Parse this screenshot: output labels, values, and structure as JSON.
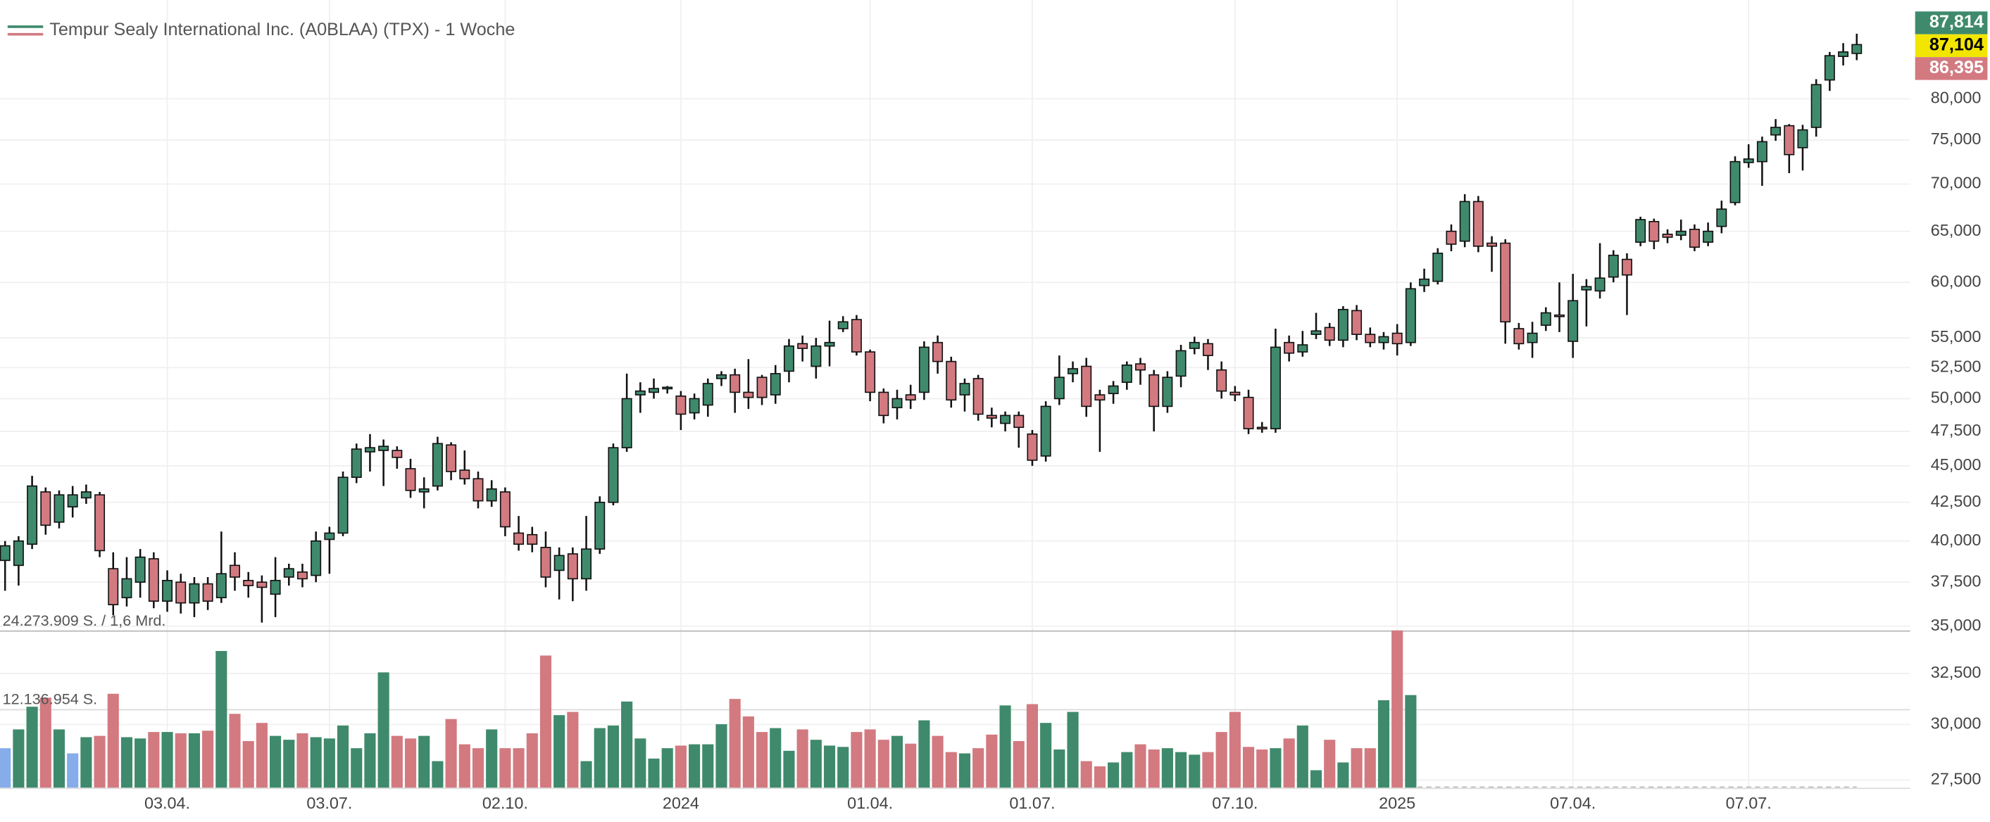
{
  "chart_data": {
    "type": "candlestick",
    "title": "Tempur Sealy International Inc. (A0BLAA) (TPX) - 1 Woche",
    "log_scale": true,
    "grid": true,
    "up_color": "#3f8a6c",
    "down_color": "#d27a80",
    "neutral_color": "#86acea",
    "categories": [
      null,
      null,
      null,
      null,
      null,
      null,
      null,
      null,
      null,
      null,
      null,
      null,
      "03.04.",
      null,
      null,
      null,
      null,
      null,
      null,
      null,
      null,
      null,
      null,
      null,
      "03.07.",
      null,
      null,
      null,
      null,
      null,
      null,
      null,
      null,
      null,
      null,
      null,
      null,
      "02.10.",
      null,
      null,
      null,
      null,
      null,
      null,
      null,
      null,
      null,
      null,
      null,
      null,
      "2024",
      null,
      null,
      null,
      null,
      null,
      null,
      null,
      null,
      null,
      null,
      null,
      null,
      null,
      "01.04.",
      null,
      null,
      null,
      null,
      null,
      null,
      null,
      null,
      null,
      null,
      null,
      "01.07.",
      null,
      null,
      null,
      null,
      null,
      null,
      null,
      null,
      null,
      null,
      null,
      null,
      null,
      null,
      "07.10.",
      null,
      null,
      null,
      null,
      null,
      null,
      null,
      null,
      null,
      null,
      null,
      "2025",
      null,
      null,
      null,
      null,
      null,
      null,
      null,
      null,
      null,
      null,
      null,
      null,
      "07.04.",
      null,
      null,
      null,
      null,
      null,
      null,
      null,
      null,
      null,
      null,
      null,
      null,
      "07.07.",
      null,
      null,
      null,
      null,
      null,
      null,
      null,
      null
    ],
    "ohlc": [
      [
        38.8,
        40,
        37,
        39.7
      ],
      [
        38.5,
        40.3,
        37.3,
        40
      ],
      [
        39.8,
        44.3,
        39.5,
        43.6
      ],
      [
        43.2,
        43.5,
        40.4,
        41
      ],
      [
        41.2,
        43.3,
        40.8,
        43
      ],
      [
        42.2,
        43.6,
        41.5,
        43
      ],
      [
        42.8,
        43.7,
        42.4,
        43.2
      ],
      [
        43,
        43.2,
        39,
        39.4
      ],
      [
        38.3,
        39.3,
        35.6,
        36.2
      ],
      [
        36.6,
        39,
        36.1,
        37.7
      ],
      [
        37.5,
        39.5,
        36.6,
        39
      ],
      [
        38.9,
        39.3,
        36,
        36.4
      ],
      [
        36.4,
        38.2,
        35.8,
        37.6
      ],
      [
        37.5,
        38,
        35.7,
        36.3
      ],
      [
        36.3,
        37.8,
        35.5,
        37.4
      ],
      [
        37.4,
        37.8,
        35.9,
        36.4
      ],
      [
        36.6,
        40.6,
        36.3,
        38
      ],
      [
        38.5,
        39.3,
        37,
        37.8
      ],
      [
        37.6,
        38.1,
        36.6,
        37.3
      ],
      [
        37.5,
        37.9,
        35.2,
        37.2
      ],
      [
        36.8,
        39,
        35.5,
        37.6
      ],
      [
        37.8,
        38.6,
        37.3,
        38.3
      ],
      [
        38.1,
        38.6,
        37.2,
        37.7
      ],
      [
        37.9,
        40.6,
        37.5,
        40
      ],
      [
        40.1,
        40.9,
        38,
        40.5
      ],
      [
        40.5,
        44.6,
        40.3,
        44.2
      ],
      [
        44.2,
        46.6,
        43.8,
        46.2
      ],
      [
        46,
        47.3,
        44.6,
        46.3
      ],
      [
        46.1,
        46.9,
        43.6,
        46.4
      ],
      [
        46.1,
        46.4,
        44.8,
        45.6
      ],
      [
        44.8,
        45.5,
        42.8,
        43.3
      ],
      [
        43.2,
        44.2,
        42.1,
        43.4
      ],
      [
        43.6,
        47.1,
        43.3,
        46.6
      ],
      [
        46.5,
        46.7,
        44,
        44.6
      ],
      [
        44.7,
        46.1,
        43.7,
        44.1
      ],
      [
        44.1,
        44.6,
        42.1,
        42.6
      ],
      [
        42.6,
        44,
        42.2,
        43.4
      ],
      [
        43.2,
        43.5,
        40.3,
        40.9
      ],
      [
        40.5,
        41.6,
        39.4,
        39.8
      ],
      [
        40.4,
        40.9,
        39.3,
        39.8
      ],
      [
        39.6,
        40.6,
        37.2,
        37.8
      ],
      [
        38.2,
        39.6,
        36.5,
        39.1
      ],
      [
        39.2,
        39.6,
        36.4,
        37.7
      ],
      [
        37.7,
        41.6,
        37,
        39.5
      ],
      [
        39.5,
        42.9,
        39.2,
        42.5
      ],
      [
        42.5,
        46.6,
        42.3,
        46.3
      ],
      [
        46.3,
        52,
        46,
        50
      ],
      [
        50.3,
        51.3,
        48.9,
        50.6
      ],
      [
        50.5,
        51.6,
        50,
        50.8
      ],
      [
        50.8,
        51,
        50.4,
        50.9
      ],
      [
        50.2,
        50.6,
        47.6,
        48.8
      ],
      [
        48.9,
        50.4,
        48.4,
        50
      ],
      [
        49.5,
        51.6,
        48.6,
        51.2
      ],
      [
        51.6,
        52.2,
        51,
        51.9
      ],
      [
        51.9,
        52.4,
        48.9,
        50.5
      ],
      [
        50.5,
        53.2,
        49.2,
        50.1
      ],
      [
        51.7,
        51.9,
        49.5,
        50.1
      ],
      [
        50.3,
        52.7,
        49.6,
        52
      ],
      [
        52.2,
        54.9,
        51.3,
        54.3
      ],
      [
        54.5,
        55.2,
        53,
        54.1
      ],
      [
        52.6,
        55,
        51.6,
        54.3
      ],
      [
        54.3,
        56.5,
        52.6,
        54.6
      ],
      [
        55.8,
        56.9,
        55.5,
        56.4
      ],
      [
        56.6,
        57,
        53.5,
        53.8
      ],
      [
        53.8,
        54,
        49.8,
        50.5
      ],
      [
        50.5,
        50.8,
        48.1,
        48.7
      ],
      [
        49.3,
        50.7,
        48.4,
        50
      ],
      [
        50.3,
        51.1,
        49.2,
        49.9
      ],
      [
        50.5,
        54.7,
        49.9,
        54.2
      ],
      [
        54.6,
        55.2,
        52,
        53
      ],
      [
        53,
        53.4,
        49.3,
        49.9
      ],
      [
        50.3,
        51.6,
        49,
        51.2
      ],
      [
        51.6,
        51.9,
        48.3,
        48.8
      ],
      [
        48.7,
        49.3,
        47.8,
        48.5
      ],
      [
        48.1,
        49,
        47.5,
        48.7
      ],
      [
        48.7,
        49,
        46.3,
        47.8
      ],
      [
        47.3,
        47.6,
        45,
        45.4
      ],
      [
        45.7,
        49.8,
        45.3,
        49.4
      ],
      [
        50,
        53.5,
        49.5,
        51.7
      ],
      [
        52,
        53,
        51.3,
        52.4
      ],
      [
        52.6,
        53.3,
        48.6,
        49.4
      ],
      [
        50.3,
        50.7,
        46,
        49.9
      ],
      [
        50.4,
        51.4,
        49.6,
        51
      ],
      [
        51.3,
        53,
        50.7,
        52.7
      ],
      [
        52.8,
        53.3,
        51.1,
        52.3
      ],
      [
        51.9,
        52.3,
        47.5,
        49.4
      ],
      [
        49.4,
        52.2,
        48.9,
        51.7
      ],
      [
        51.8,
        54.4,
        50.9,
        53.9
      ],
      [
        54.1,
        55.1,
        53.6,
        54.6
      ],
      [
        54.5,
        54.9,
        52.3,
        53.5
      ],
      [
        52.3,
        53,
        50,
        50.6
      ],
      [
        50.5,
        51,
        49.8,
        50.3
      ],
      [
        50.1,
        50.7,
        47.3,
        47.7
      ],
      [
        47.8,
        48.2,
        47.4,
        47.7
      ],
      [
        47.7,
        55.8,
        47.4,
        54.2
      ],
      [
        54.6,
        55.2,
        53,
        53.7
      ],
      [
        53.8,
        55.6,
        53.4,
        54.4
      ],
      [
        55.3,
        57.2,
        54.9,
        55.6
      ],
      [
        55.9,
        56.3,
        54.3,
        54.8
      ],
      [
        54.8,
        57.8,
        54.2,
        57.5
      ],
      [
        57.4,
        57.9,
        54.8,
        55.3
      ],
      [
        55.3,
        55.9,
        54.2,
        54.6
      ],
      [
        54.6,
        55.5,
        54,
        55.1
      ],
      [
        55.4,
        56.2,
        53.5,
        54.5
      ],
      [
        54.6,
        60,
        54.3,
        59.4
      ],
      [
        59.7,
        61.3,
        59.1,
        60.3
      ],
      [
        60.1,
        63.3,
        59.8,
        62.8
      ],
      [
        65,
        65.7,
        63,
        63.7
      ],
      [
        64,
        68.9,
        63.4,
        68.1
      ],
      [
        68.1,
        68.7,
        62.9,
        63.5
      ],
      [
        63.8,
        64.5,
        61,
        63.5
      ],
      [
        63.8,
        64.2,
        54.5,
        56.4
      ],
      [
        55.8,
        56.3,
        54,
        54.5
      ],
      [
        54.6,
        56.4,
        53.3,
        55.4
      ],
      [
        56.1,
        57.7,
        55.6,
        57.2
      ],
      [
        57,
        60,
        55.5,
        56.9
      ],
      [
        54.7,
        60.8,
        53.3,
        58.3
      ],
      [
        59.3,
        60.3,
        56,
        59.6
      ],
      [
        59.2,
        63.8,
        58.5,
        60.4
      ],
      [
        60.5,
        63.1,
        60,
        62.6
      ],
      [
        62.2,
        62.8,
        57,
        60.7
      ],
      [
        63.9,
        66.5,
        63.5,
        66.2
      ],
      [
        66,
        66.3,
        63.2,
        64
      ],
      [
        64.7,
        65.2,
        63.8,
        64.4
      ],
      [
        64.6,
        66.2,
        64.1,
        65
      ],
      [
        65.2,
        65.7,
        63,
        63.4
      ],
      [
        63.9,
        65.9,
        63.5,
        65
      ],
      [
        65.5,
        68.2,
        64.8,
        67.3
      ],
      [
        68,
        73.1,
        67.7,
        72.5
      ],
      [
        72.4,
        74.5,
        71.8,
        72.8
      ],
      [
        72.5,
        75.4,
        69.8,
        74.8
      ],
      [
        75.6,
        77.5,
        74.9,
        76.5
      ],
      [
        76.7,
        76.9,
        71.2,
        73.3
      ],
      [
        74.1,
        76.8,
        71.5,
        76.2
      ],
      [
        76.5,
        82.5,
        75.4,
        81.8
      ],
      [
        82.4,
        86.1,
        81,
        85.6
      ],
      [
        85.5,
        87.3,
        84.3,
        86.1
      ],
      [
        85.9,
        88.6,
        85,
        87.1
      ]
    ],
    "volume": [
      6100000,
      9000000,
      12500000,
      13900000,
      9000000,
      5300000,
      7800000,
      8000000,
      14500000,
      7800000,
      7600000,
      8600000,
      8600000,
      8400000,
      8400000,
      8800000,
      21100000,
      11400000,
      7200000,
      10000000,
      8000000,
      7400000,
      8400000,
      7800000,
      7600000,
      9600000,
      6100000,
      8400000,
      17800000,
      8000000,
      7600000,
      8000000,
      4100000,
      10600000,
      6700000,
      6100000,
      9000000,
      6100000,
      6100000,
      8400000,
      20400000,
      11200000,
      11700000,
      4100000,
      9200000,
      9600000,
      13300000,
      7600000,
      4500000,
      6100000,
      6500000,
      6700000,
      6700000,
      9800000,
      13700000,
      11000000,
      8600000,
      9200000,
      5700000,
      9000000,
      7400000,
      6500000,
      6300000,
      8600000,
      9000000,
      7400000,
      8000000,
      6800000,
      10400000,
      8000000,
      5500000,
      5300000,
      6100000,
      8200000,
      12700000,
      7200000,
      12900000,
      10000000,
      5900000,
      11700000,
      4100000,
      3300000,
      3900000,
      5500000,
      6700000,
      5900000,
      6100000,
      5500000,
      5100000,
      5500000,
      8600000,
      11700000,
      6300000,
      5900000,
      6100000,
      7600000,
      9600000,
      2700000,
      7400000,
      3900000,
      6100000,
      6100000,
      13500000,
      24273909,
      14300000,
      null,
      null,
      null,
      null,
      null,
      null,
      null,
      null,
      null,
      null,
      null,
      null,
      null,
      null,
      null,
      null,
      null,
      null,
      null,
      null,
      null,
      null,
      null,
      null,
      null,
      null,
      null,
      null,
      null,
      null,
      null,
      null,
      null
    ],
    "volume_neutral": [
      0,
      5
    ],
    "volume_ylim": [
      0,
      24273909
    ],
    "volume_ticks": [
      {
        "value": 24273909,
        "label": "24.273.909 S. / 1,6 Mrd."
      },
      {
        "value": 12136954,
        "label": "12.136.954 S."
      }
    ],
    "ylim": [
      27.17,
      93.4
    ],
    "yticks": [
      {
        "value": 80,
        "label": "80,000"
      },
      {
        "value": 75,
        "label": "75,000"
      },
      {
        "value": 70,
        "label": "70,000"
      },
      {
        "value": 65,
        "label": "65,000"
      },
      {
        "value": 60,
        "label": "60,000"
      },
      {
        "value": 55,
        "label": "55,000"
      },
      {
        "value": 52.5,
        "label": "52,500"
      },
      {
        "value": 50,
        "label": "50,000"
      },
      {
        "value": 47.5,
        "label": "47,500"
      },
      {
        "value": 45,
        "label": "45,000"
      },
      {
        "value": 42.5,
        "label": "42,500"
      },
      {
        "value": 40,
        "label": "40,000"
      },
      {
        "value": 37.5,
        "label": "37,500"
      },
      {
        "value": 35,
        "label": "35,000"
      },
      {
        "value": 32.5,
        "label": "32,500"
      },
      {
        "value": 30,
        "label": "30,000"
      },
      {
        "value": 27.5,
        "label": "27,500"
      }
    ],
    "price_tags": [
      {
        "value": 87.814,
        "label": "87,814",
        "color": "#3f8a6c",
        "text_color": "#ffffff"
      },
      {
        "value": 87.104,
        "label": "87,104",
        "color": "#f2e600",
        "text_color": "#000000"
      },
      {
        "value": 86.395,
        "label": "86,395",
        "color": "#d27a80",
        "text_color": "#ffffff"
      }
    ]
  }
}
